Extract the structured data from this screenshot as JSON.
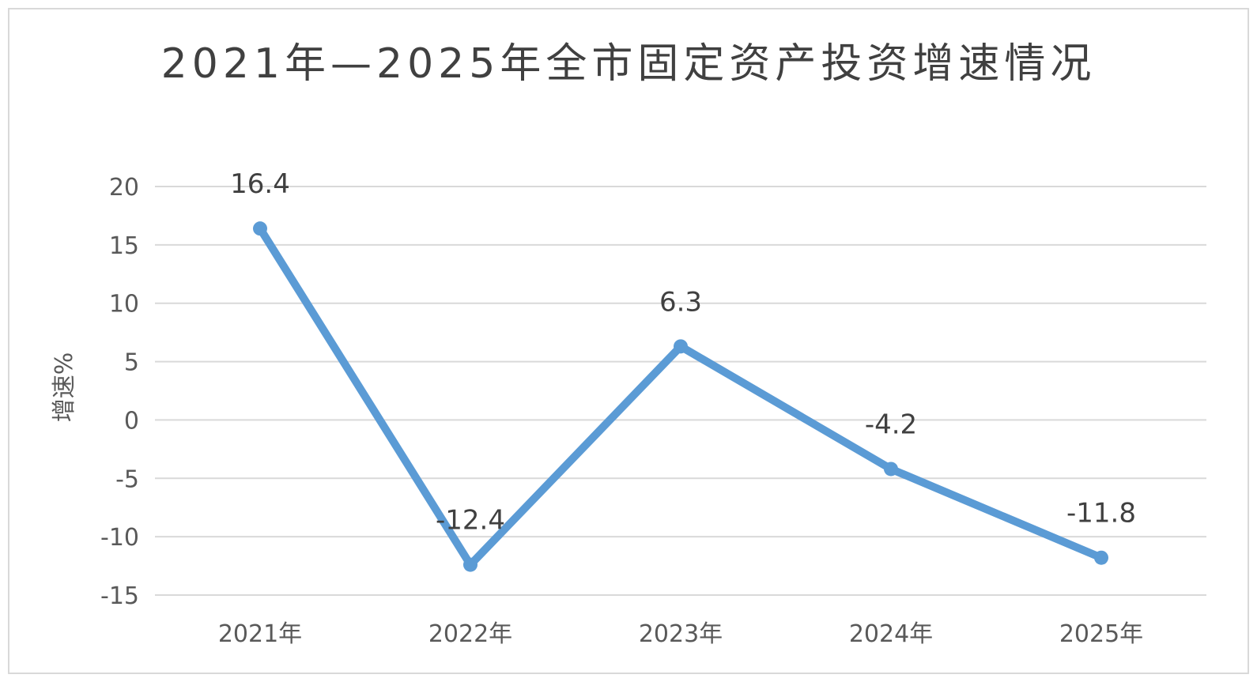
{
  "chart_data": {
    "type": "line",
    "title": "2021年—2025年全市固定资产投资增速情况",
    "ylabel": "增速%",
    "xlabel": "",
    "categories": [
      "2021年",
      "2022年",
      "2023年",
      "2024年",
      "2025年"
    ],
    "series": [
      {
        "values": [
          16.4,
          -12.4,
          6.3,
          -4.2,
          -11.8
        ]
      }
    ],
    "data_labels": [
      "16.4",
      "-12.4",
      "6.3",
      "-4.2",
      "-11.8"
    ],
    "ylim": [
      -15,
      20
    ],
    "yticks": [
      20,
      15,
      10,
      5,
      0,
      -5,
      -10,
      -15
    ],
    "grid": true,
    "legend": "none",
    "colors": {
      "line": "#5b9bd5",
      "grid": "#d9d9d9",
      "text": "#595959",
      "label": "#404040"
    }
  }
}
